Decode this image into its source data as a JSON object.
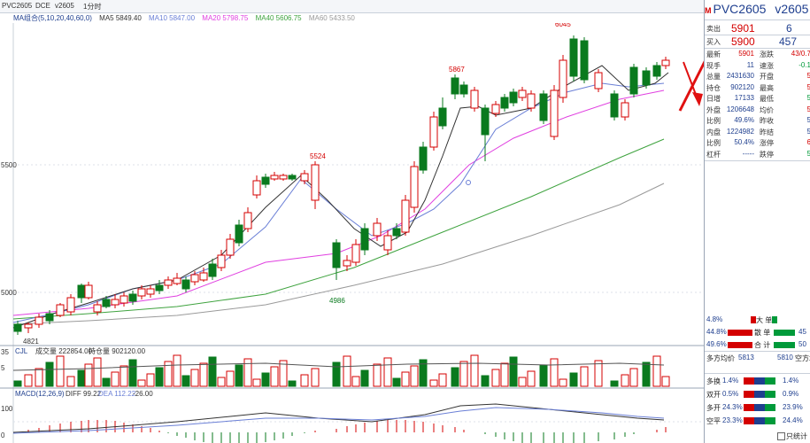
{
  "topbar": {
    "symbol": "PVC2605",
    "exchange": "DCE",
    "contract": "v2605",
    "period": "1分时"
  },
  "indicator": {
    "ma_label": "MA组合(5,10,20,40,60,0)",
    "ma5": "MA5 5849.40",
    "ma10": "MA10 5847.00",
    "ma20": "MA20 5798.75",
    "ma40": "MA40 5606.75",
    "ma60": "MA60 5433.50"
  },
  "price_axis": {
    "p5500": "5500",
    "p5000": "5000",
    "low_label": "4821"
  },
  "annotations": {
    "high": "6045",
    "h2": "5867",
    "h3": "5524",
    "low": "4986"
  },
  "volume_bar": {
    "label": "CJL",
    "vol": "成交量 222854.00",
    "oi": "持仓量 902120.00",
    "axis_top": "35",
    "axis_mid": "5"
  },
  "macd_bar": {
    "label": "MACD(12,26,9)",
    "diff": "DIFF 99.22",
    "dea": "DEA 112.22",
    "macd": "-26.00",
    "axis_100": "100",
    "axis_0": "0"
  },
  "right": {
    "title": "PVC2605",
    "code": "v2605",
    "sell_label": "卖出",
    "sell_price": "5901",
    "sell_qty": "6",
    "buy_label": "买入",
    "buy_price": "5900",
    "buy_qty": "457",
    "rows": [
      {
        "l": "最新",
        "v": "5901",
        "vc": "red",
        "l2": "涨跌",
        "v2": "43/0.7",
        "v2c": "red"
      },
      {
        "l": "现手",
        "v": "11",
        "vc": "blue",
        "l2": "速涨",
        "v2": "-0.1",
        "v2c": "green"
      },
      {
        "l": "总量",
        "v": "2431630",
        "vc": "blue",
        "l2": "开盘",
        "v2": "5",
        "v2c": "red"
      },
      {
        "l": "持仓",
        "v": "902120",
        "vc": "blue",
        "l2": "最高",
        "v2": "5",
        "v2c": "red"
      },
      {
        "l": "日增",
        "v": "17133",
        "vc": "blue",
        "l2": "最低",
        "v2": "5",
        "v2c": "green"
      },
      {
        "l": "外盘",
        "v": "1206648",
        "vc": "blue",
        "l2": "均价",
        "v2": "5",
        "v2c": "red"
      },
      {
        "l": "比例",
        "v": "49.6%",
        "vc": "blue",
        "l2": "昨收",
        "v2": "5",
        "v2c": "blue"
      },
      {
        "l": "内盘",
        "v": "1224982",
        "vc": "blue",
        "l2": "昨结",
        "v2": "5",
        "v2c": "blue"
      },
      {
        "l": "比例",
        "v": "50.4%",
        "vc": "blue",
        "l2": "涨停",
        "v2": "6",
        "v2c": "red"
      },
      {
        "l": "杠杆",
        "v": "-----",
        "vc": "blue",
        "l2": "跌停",
        "v2": "5",
        "v2c": "green"
      }
    ],
    "big": {
      "l1": "4.8%",
      "t1": "大 单",
      "l2": "44.8%",
      "t2": "散 单",
      "v2": "45",
      "l3": "49.6%",
      "t3": "合 计",
      "v3": "50"
    },
    "duofang": {
      "label": "多方均价",
      "v1": "5813",
      "v2": "5810",
      "l2": "空方均"
    },
    "stats": [
      {
        "t": "多换",
        "p": "1.4%",
        "p2": "1.4%"
      },
      {
        "t": "双开",
        "p": "0.5%",
        "p2": "0.9%"
      },
      {
        "t": "多开",
        "p": "24.3%",
        "p2": "23.9%"
      },
      {
        "t": "空平",
        "p": "23.3%",
        "p2": "24.4%"
      }
    ],
    "only_stat": "只统计"
  },
  "colors": {
    "up": "#d40000",
    "down": "#0a7a1e",
    "ma5": "#333333",
    "ma10": "#6a7fd6",
    "ma20": "#e040e0",
    "ma40": "#3fa33f",
    "ma60": "#9a9a9a"
  }
}
